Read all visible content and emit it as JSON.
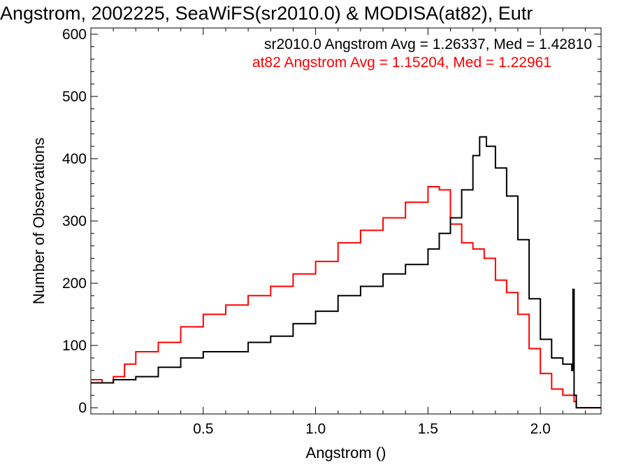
{
  "chart_data": {
    "type": "line",
    "style": "step-histogram",
    "title": "Angstrom, 2002225, SeaWiFS(sr2010.0) & MODISA(at82), Eutr",
    "xlabel": "Angstrom ()",
    "ylabel": "Number of Observations",
    "xlim": [
      0.0,
      2.27
    ],
    "ylim": [
      -10,
      610
    ],
    "x_ticks": [
      0.5,
      1.0,
      1.5,
      2.0
    ],
    "x_tick_labels": [
      "0.5",
      "1.0",
      "1.5",
      "2.0"
    ],
    "y_ticks": [
      0,
      100,
      200,
      300,
      400,
      500,
      600
    ],
    "y_tick_labels": [
      "0",
      "100",
      "200",
      "300",
      "400",
      "500",
      "600"
    ],
    "grid": false,
    "legend_placement": "top-right",
    "annotations": [
      {
        "text": "sr2010.0 Angstrom Avg = 1.26337, Med = 1.42810",
        "color": "#000000"
      },
      {
        "text": "at82 Angstrom Avg = 1.15204, Med = 1.22961",
        "color": "#ff0000"
      }
    ],
    "series": [
      {
        "color": "#000000",
        "x": [
          0.0,
          0.1,
          0.2,
          0.3,
          0.4,
          0.5,
          0.6,
          0.7,
          0.8,
          0.9,
          1.0,
          1.1,
          1.2,
          1.3,
          1.4,
          1.5,
          1.55,
          1.6,
          1.65,
          1.7,
          1.73,
          1.76,
          1.8,
          1.85,
          1.9,
          1.95,
          2.0,
          2.05,
          2.1,
          2.14,
          2.145,
          2.15,
          2.16,
          2.27
        ],
        "values": [
          40,
          45,
          50,
          65,
          80,
          90,
          90,
          105,
          115,
          135,
          155,
          180,
          195,
          215,
          230,
          255,
          280,
          305,
          350,
          405,
          435,
          420,
          385,
          340,
          270,
          175,
          110,
          80,
          70,
          60,
          190,
          20,
          0,
          0
        ]
      },
      {
        "color": "#ff0000",
        "x": [
          0.0,
          0.05,
          0.1,
          0.15,
          0.2,
          0.3,
          0.4,
          0.5,
          0.6,
          0.7,
          0.8,
          0.9,
          1.0,
          1.1,
          1.2,
          1.3,
          1.4,
          1.5,
          1.55,
          1.6,
          1.65,
          1.7,
          1.75,
          1.8,
          1.85,
          1.9,
          1.95,
          2.0,
          2.05,
          2.1,
          2.15,
          2.16,
          2.27
        ],
        "values": [
          45,
          40,
          50,
          70,
          90,
          105,
          130,
          150,
          165,
          180,
          195,
          215,
          235,
          265,
          285,
          305,
          330,
          355,
          350,
          295,
          265,
          255,
          240,
          205,
          185,
          150,
          95,
          55,
          30,
          20,
          10,
          0,
          0
        ]
      }
    ]
  }
}
